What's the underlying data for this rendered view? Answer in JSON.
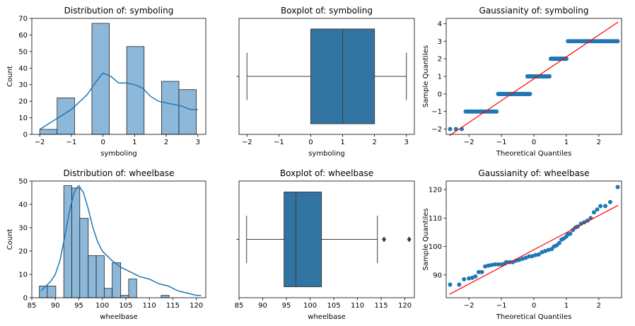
{
  "chart_data": [
    {
      "type": "histogram",
      "title": "Distribution of: symboling",
      "xlabel": "symboling",
      "ylabel": "Count",
      "xlim": [
        -2.25,
        3.25
      ],
      "ylim": [
        0,
        70
      ],
      "xticks": [
        -2,
        -1,
        0,
        1,
        2,
        3
      ],
      "yticks": [
        0,
        10,
        20,
        30,
        40,
        50,
        60,
        70
      ],
      "bar_color": "#8db8d9",
      "kde_color": "#1f77b4",
      "bins": [
        {
          "x0": -2.0,
          "x1": -1.45,
          "count": 3
        },
        {
          "x0": -1.45,
          "x1": -0.9,
          "count": 22
        },
        {
          "x0": -0.9,
          "x1": -0.35,
          "count": 0
        },
        {
          "x0": -0.35,
          "x1": 0.2,
          "count": 67
        },
        {
          "x0": 0.2,
          "x1": 0.75,
          "count": 0
        },
        {
          "x0": 0.75,
          "x1": 1.3,
          "count": 53
        },
        {
          "x0": 1.3,
          "x1": 1.85,
          "count": 0
        },
        {
          "x0": 1.85,
          "x1": 2.4,
          "count": 32
        },
        {
          "x0": 2.4,
          "x1": 2.95,
          "count": 27
        }
      ],
      "kde": {
        "x": [
          -2,
          -1.5,
          -1,
          -0.5,
          -0.25,
          0,
          0.25,
          0.5,
          0.75,
          1,
          1.25,
          1.5,
          1.75,
          2,
          2.25,
          2.5,
          2.75,
          3
        ],
        "y": [
          3,
          9,
          15,
          24,
          31,
          37,
          35,
          31,
          31,
          30,
          28,
          23,
          20,
          19,
          18,
          17,
          15,
          15
        ]
      }
    },
    {
      "type": "boxplot",
      "title": "Boxplot of: symboling",
      "xlabel": "symboling",
      "xlim": [
        -2.25,
        3.25
      ],
      "xticks": [
        -2,
        -1,
        0,
        1,
        2,
        3
      ],
      "box_color": "#3274a1",
      "stats": {
        "whisker_low": -2,
        "q1": 0,
        "median": 1,
        "q3": 2,
        "whisker_high": 3
      },
      "outliers": []
    },
    {
      "type": "scatter",
      "title": "Gaussianity of: symboling",
      "xlabel": "Theoretical Quantiles",
      "ylabel": "Sample Quantiles",
      "xlim": [
        -2.7,
        2.7
      ],
      "ylim": [
        -2.3,
        4.3
      ],
      "xticks": [
        -2,
        -1,
        0,
        1,
        2
      ],
      "yticks": [
        -2,
        -1,
        0,
        1,
        2,
        3,
        4
      ],
      "point_color": "#1f77b4",
      "line_color": "#ff0000",
      "line": [
        [
          -2.6,
          -2.37
        ],
        [
          2.6,
          4.1
        ]
      ],
      "groups": [
        {
          "y": -2,
          "x_from": -2.58,
          "x_to": -2.22,
          "n": 3
        },
        {
          "y": -1,
          "x_from": -2.1,
          "x_to": -1.15,
          "n": 22
        },
        {
          "y": 0,
          "x_from": -1.1,
          "x_to": -0.12,
          "n": 67
        },
        {
          "y": 1,
          "x_from": -0.2,
          "x_to": 0.48,
          "n": 53
        },
        {
          "y": 2,
          "x_from": 0.52,
          "x_to": 1.0,
          "n": 32
        },
        {
          "y": 3,
          "x_from": 1.05,
          "x_to": 2.58,
          "n": 27
        }
      ]
    },
    {
      "type": "histogram",
      "title": "Distribution of: wheelbase",
      "xlabel": "wheelbase",
      "ylabel": "Count",
      "xlim": [
        85,
        122
      ],
      "ylim": [
        0,
        50
      ],
      "xticks": [
        85,
        90,
        95,
        100,
        105,
        110,
        115,
        120
      ],
      "yticks": [
        0,
        10,
        20,
        30,
        40,
        50
      ],
      "bar_color": "#8db8d9",
      "kde_color": "#1f77b4",
      "bins": [
        {
          "x0": 86.6,
          "x1": 88.3,
          "count": 5
        },
        {
          "x0": 88.3,
          "x1": 90.1,
          "count": 5
        },
        {
          "x0": 90.1,
          "x1": 91.8,
          "count": 0
        },
        {
          "x0": 91.8,
          "x1": 93.5,
          "count": 48
        },
        {
          "x0": 93.5,
          "x1": 95.2,
          "count": 47
        },
        {
          "x0": 95.2,
          "x1": 97.0,
          "count": 34
        },
        {
          "x0": 97.0,
          "x1": 98.7,
          "count": 18
        },
        {
          "x0": 98.7,
          "x1": 100.4,
          "count": 18
        },
        {
          "x0": 100.4,
          "x1": 102.1,
          "count": 4
        },
        {
          "x0": 102.1,
          "x1": 103.9,
          "count": 15
        },
        {
          "x0": 103.9,
          "x1": 105.6,
          "count": 1
        },
        {
          "x0": 105.6,
          "x1": 107.3,
          "count": 8
        },
        {
          "x0": 107.3,
          "x1": 109.0,
          "count": 0
        },
        {
          "x0": 109.0,
          "x1": 110.8,
          "count": 0
        },
        {
          "x0": 110.8,
          "x1": 112.5,
          "count": 0
        },
        {
          "x0": 112.5,
          "x1": 114.2,
          "count": 1
        }
      ],
      "kde": {
        "x": [
          87,
          88,
          89,
          90,
          91,
          92,
          93,
          94,
          94.5,
          95,
          96,
          97,
          98,
          99,
          100,
          102,
          104,
          106,
          108,
          110,
          112,
          114,
          116,
          118,
          120,
          121
        ],
        "y": [
          3,
          5,
          7,
          10,
          16,
          26,
          37,
          45,
          47,
          48,
          45,
          38,
          30,
          24,
          20,
          16,
          13,
          11,
          9,
          8,
          6,
          5,
          3,
          2,
          1,
          1
        ]
      }
    },
    {
      "type": "boxplot",
      "title": "Boxplot of: wheelbase",
      "xlabel": "wheelbase",
      "xlim": [
        85,
        122
      ],
      "xticks": [
        85,
        90,
        95,
        100,
        105,
        110,
        115,
        120
      ],
      "box_color": "#3274a1",
      "stats": {
        "whisker_low": 86.6,
        "q1": 94.5,
        "median": 97.0,
        "q3": 102.4,
        "whisker_high": 114.2
      },
      "outliers": [
        115.6,
        120.9
      ]
    },
    {
      "type": "scatter",
      "title": "Gaussianity of: wheelbase",
      "xlabel": "Theoretical Quantiles",
      "ylabel": "Sample Quantiles",
      "xlim": [
        -2.7,
        2.7
      ],
      "ylim": [
        82,
        123
      ],
      "xticks": [
        -2,
        -1,
        0,
        1,
        2
      ],
      "yticks": [
        90,
        100,
        110,
        120
      ],
      "point_color": "#1f77b4",
      "line_color": "#ff0000",
      "line": [
        [
          -2.6,
          83.2
        ],
        [
          2.6,
          114.5
        ]
      ],
      "points": [
        [
          -2.58,
          86.6
        ],
        [
          -2.3,
          86.6
        ],
        [
          -2.15,
          88.5
        ],
        [
          -2.0,
          88.8
        ],
        [
          -1.9,
          89.0
        ],
        [
          -1.8,
          89.5
        ],
        [
          -1.7,
          91.0
        ],
        [
          -1.6,
          91.0
        ],
        [
          -1.5,
          93.0
        ],
        [
          -1.4,
          93.3
        ],
        [
          -1.3,
          93.5
        ],
        [
          -1.2,
          93.7
        ],
        [
          -1.1,
          93.7
        ],
        [
          -1.0,
          93.7
        ],
        [
          -0.9,
          94.0
        ],
        [
          -0.85,
          94.5
        ],
        [
          -0.75,
          94.5
        ],
        [
          -0.65,
          94.5
        ],
        [
          -0.55,
          95.0
        ],
        [
          -0.45,
          95.3
        ],
        [
          -0.35,
          95.7
        ],
        [
          -0.25,
          96.0
        ],
        [
          -0.15,
          96.5
        ],
        [
          -0.05,
          96.6
        ],
        [
          0.05,
          97.0
        ],
        [
          0.15,
          97.2
        ],
        [
          0.25,
          98.0
        ],
        [
          0.35,
          98.4
        ],
        [
          0.45,
          98.8
        ],
        [
          0.55,
          99.1
        ],
        [
          0.62,
          100.0
        ],
        [
          0.7,
          100.4
        ],
        [
          0.78,
          101.2
        ],
        [
          0.85,
          102.4
        ],
        [
          0.92,
          102.8
        ],
        [
          1.0,
          103.5
        ],
        [
          1.05,
          104.3
        ],
        [
          1.12,
          104.5
        ],
        [
          1.2,
          105.8
        ],
        [
          1.28,
          106.7
        ],
        [
          1.35,
          107.0
        ],
        [
          1.45,
          108.0
        ],
        [
          1.55,
          108.5
        ],
        [
          1.65,
          109.1
        ],
        [
          1.75,
          110.0
        ],
        [
          1.85,
          112.0
        ],
        [
          1.95,
          113.0
        ],
        [
          2.05,
          114.2
        ],
        [
          2.2,
          114.2
        ],
        [
          2.35,
          115.6
        ],
        [
          2.58,
          120.9
        ]
      ]
    }
  ]
}
